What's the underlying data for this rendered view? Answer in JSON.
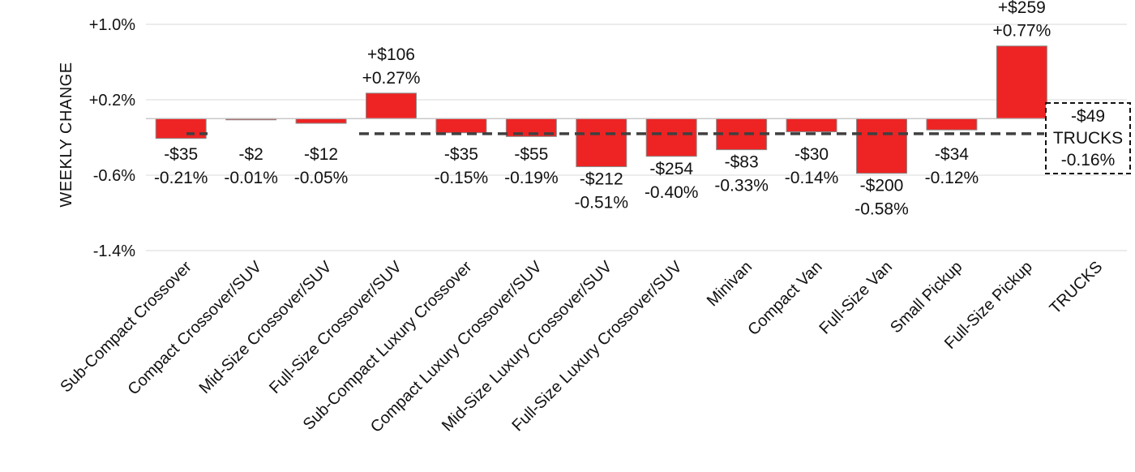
{
  "chart_data": {
    "type": "bar",
    "ylabel": "WEEKLY CHANGE",
    "ylim": [
      -1.4,
      1.0
    ],
    "yticks": [
      "+1.0%",
      "+0.2%",
      "-0.6%",
      "-1.4%"
    ],
    "ytick_values": [
      1.0,
      0.2,
      -0.6,
      -1.4
    ],
    "grid": true,
    "categories": [
      "Sub-Compact Crossover",
      "Compact Crossover/SUV",
      "Mid-Size Crossover/SUV",
      "Full-Size Crossover/SUV",
      "Sub-Compact Luxury Crossover",
      "Compact Luxury Crossover/SUV",
      "Mid-Size Luxury Crossover/SUV",
      "Full-Size Luxury Crossover/SUV",
      "Minivan",
      "Compact Van",
      "Full-Size Van",
      "Small Pickup",
      "Full-Size Pickup",
      "TRUCKS"
    ],
    "values": [
      -0.21,
      -0.01,
      -0.05,
      0.27,
      -0.15,
      -0.19,
      -0.51,
      -0.4,
      -0.33,
      -0.14,
      -0.58,
      -0.12,
      0.77,
      null
    ],
    "dollar_labels": [
      "-$35",
      "-$2",
      "-$12",
      "+$106",
      "-$35",
      "-$55",
      "-$212",
      "-$254",
      "-$83",
      "-$30",
      "-$200",
      "-$34",
      "+$259",
      "-$49"
    ],
    "percent_labels": [
      "-0.21%",
      "-0.01%",
      "-0.05%",
      "+0.27%",
      "-0.15%",
      "-0.19%",
      "-0.51%",
      "-0.40%",
      "-0.33%",
      "-0.14%",
      "-0.58%",
      "-0.12%",
      "+0.77%",
      "-0.16%"
    ],
    "average_line": {
      "value": -0.16
    },
    "summary_box": {
      "dollar": "-$49",
      "name": "TRUCKS",
      "percent": "-0.16%"
    },
    "bar_color": "#ee2424",
    "bar_edge_color": "#8c8c8c",
    "line_color": "#404040"
  }
}
